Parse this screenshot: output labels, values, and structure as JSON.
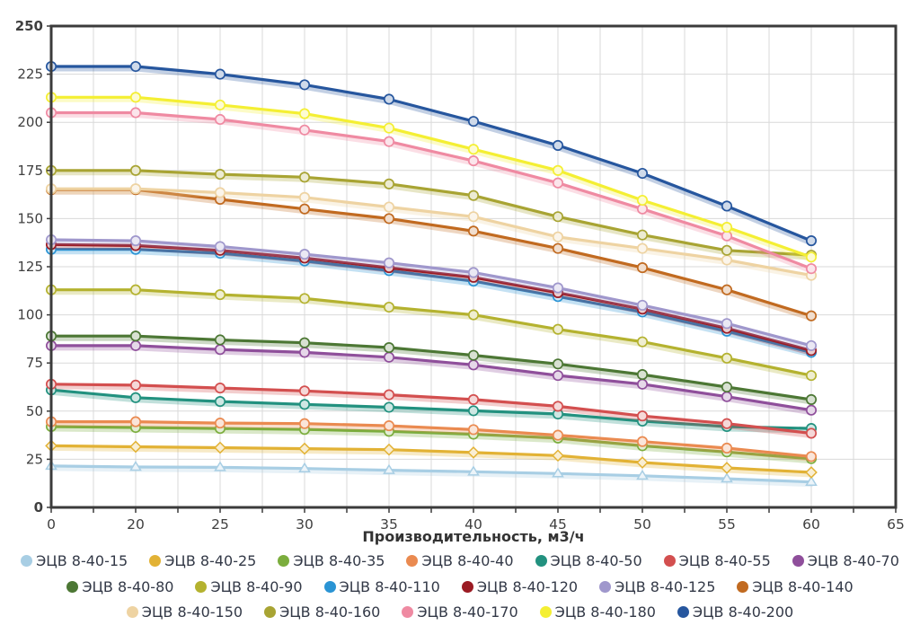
{
  "colors": {
    "background": "#ffffff",
    "plot_frame": "#3b3b3b",
    "gridline": "#d9d9d9",
    "tick_text": "#3f3f3f",
    "axis_title_text": "#333333",
    "legend_text": "#333947"
  },
  "chart_data": {
    "type": "line",
    "title": "",
    "xlabel": "Производительность, м3/ч",
    "ylabel": "",
    "x_categories": [
      "0",
      "20",
      "25",
      "30",
      "35",
      "40",
      "45",
      "50",
      "55",
      "60",
      "65"
    ],
    "y_ticks": [
      0,
      25,
      50,
      75,
      100,
      125,
      150,
      175,
      200,
      225,
      250
    ],
    "ylim": [
      0,
      250
    ],
    "grid": "horizontal major; vertical major and minor (halfway) lines",
    "legend_position": "bottom",
    "note": "Head curves (m) vs flow for ЭЦВ 8-40 series pumps; data points exist for flows 0..60, none at 65",
    "series": [
      {
        "name": "ЭЦВ 8-40-15",
        "color": "#a8cee4",
        "marker": "triangle",
        "values": [
          21.5,
          21,
          20.8,
          20.2,
          19.3,
          18.5,
          17.6,
          16.4,
          14.9,
          13.2
        ]
      },
      {
        "name": "ЭЦВ 8-40-25",
        "color": "#e2b235",
        "marker": "diamond",
        "values": [
          32,
          31.5,
          31,
          30.5,
          30,
          28.5,
          26.9,
          23.3,
          20.5,
          18.2
        ]
      },
      {
        "name": "ЭЦВ 8-40-35",
        "color": "#7bad3d",
        "marker": "circle",
        "values": [
          42,
          41.5,
          41,
          40.5,
          39.5,
          38,
          36,
          32,
          28.8,
          25.3
        ]
      },
      {
        "name": "ЭЦВ 8-40-40",
        "color": "#ea8a50",
        "marker": "circle",
        "values": [
          44.5,
          44.5,
          43.8,
          43.5,
          42.4,
          40.4,
          37.5,
          34.2,
          30.8,
          26.4
        ]
      },
      {
        "name": "ЭЦВ 8-40-50",
        "color": "#22917f",
        "marker": "circle",
        "values": [
          61,
          57,
          55,
          53.5,
          52,
          50.2,
          48.5,
          44.8,
          42,
          41
        ]
      },
      {
        "name": "ЭЦВ 8-40-55",
        "color": "#d34f4f",
        "marker": "circle",
        "values": [
          64,
          63.5,
          62,
          60.5,
          58.5,
          56,
          52.5,
          47.5,
          43.5,
          38.5
        ]
      },
      {
        "name": "ЭЦВ 8-40-70",
        "color": "#8f4f9b",
        "marker": "circle",
        "values": [
          84,
          84,
          82,
          80.5,
          78,
          74,
          68.5,
          64,
          57.5,
          50.5
        ]
      },
      {
        "name": "ЭЦВ 8-40-80",
        "color": "#4c7734",
        "marker": "circle",
        "values": [
          89,
          89,
          87,
          85.5,
          83,
          79,
          74.5,
          69,
          62.5,
          56
        ]
      },
      {
        "name": "ЭЦВ 8-40-90",
        "color": "#b4b22f",
        "marker": "circle",
        "values": [
          113,
          113,
          110.5,
          108.5,
          104,
          100,
          92.5,
          86,
          77.5,
          68.5
        ]
      },
      {
        "name": "ЭЦВ 8-40-110",
        "color": "#2a94d4",
        "marker": "circle",
        "values": [
          134,
          134,
          132,
          128,
          123,
          117.5,
          109.5,
          101.5,
          91.5,
          80.5
        ]
      },
      {
        "name": "ЭЦВ 8-40-120",
        "color": "#9b1b23",
        "marker": "circle",
        "values": [
          136.5,
          136,
          133.5,
          129.5,
          124.5,
          119.5,
          111.5,
          103,
          93,
          81.5
        ]
      },
      {
        "name": "ЭЦВ 8-40-125",
        "color": "#9f97cc",
        "marker": "circle",
        "values": [
          139,
          138.5,
          135.5,
          131.5,
          127,
          122,
          114,
          105,
          95.5,
          84
        ]
      },
      {
        "name": "ЭЦВ 8-40-140",
        "color": "#c16a20",
        "marker": "circle",
        "values": [
          165,
          165,
          160,
          155,
          150,
          143.5,
          134.5,
          124.5,
          113,
          99.5
        ]
      },
      {
        "name": "ЭЦВ 8-40-150",
        "color": "#eed3a2",
        "marker": "circle",
        "values": [
          165.5,
          165.5,
          163.5,
          161,
          156,
          151,
          140.5,
          134.5,
          128.5,
          120.5
        ]
      },
      {
        "name": "ЭЦВ 8-40-160",
        "color": "#a8a433",
        "marker": "circle",
        "values": [
          175,
          175,
          173,
          171.5,
          168,
          162,
          151,
          141.5,
          133.5,
          131
        ]
      },
      {
        "name": "ЭЦВ 8-40-170",
        "color": "#ef8aa2",
        "marker": "circle",
        "values": [
          205,
          205,
          201.5,
          196,
          190,
          180,
          168.5,
          155,
          141,
          124
        ]
      },
      {
        "name": "ЭЦВ 8-40-180",
        "color": "#f4ef33",
        "marker": "circle",
        "values": [
          213,
          213,
          209,
          204.5,
          197,
          186,
          175,
          159.5,
          145.5,
          130
        ]
      },
      {
        "name": "ЭЦВ 8-40-200",
        "color": "#26569e",
        "marker": "circle",
        "values": [
          229,
          229,
          225,
          219.5,
          212,
          200.5,
          188,
          173.5,
          156.5,
          138.5
        ]
      }
    ]
  }
}
